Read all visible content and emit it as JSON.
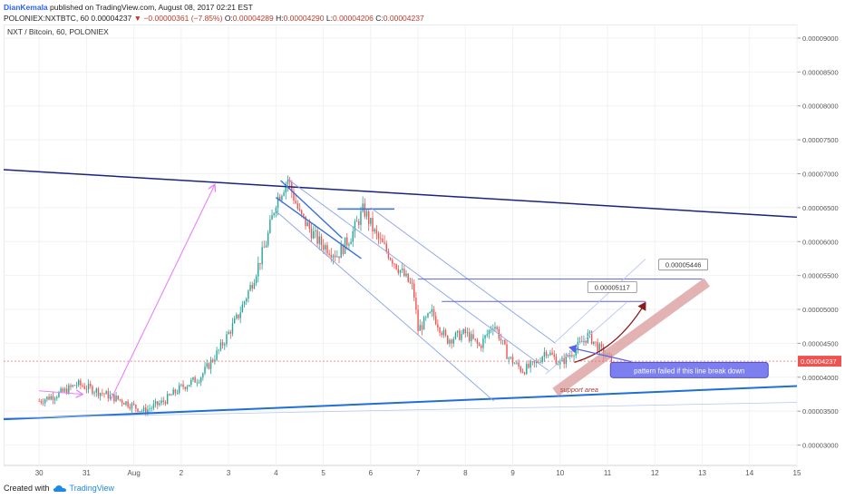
{
  "header": {
    "author": "DianKemala",
    "published": "published on TradingView.com, August 08, 2017 02:21 EST",
    "symbol": "POLONIEX:NXTBTC, 60",
    "change_arrow": "▼",
    "change": "−0.00000361 (−7.85%)",
    "price": "0.00004237",
    "open_label": "O:",
    "open": "0.00004289",
    "high_label": "H:",
    "high": "0.00004290",
    "low_label": "L:",
    "low": "0.00004206",
    "close_label": "C:",
    "close": "0.00004237"
  },
  "footer": {
    "created_with": "Created with",
    "brand": "TradingView"
  },
  "chart_data": {
    "type": "candlestick",
    "title": "NXT / Bitcoin, 60, POLONIEX",
    "x_ticks": [
      "30",
      "31",
      "Aug",
      "2",
      "3",
      "4",
      "5",
      "6",
      "7",
      "8",
      "9",
      "10",
      "11",
      "12",
      "13",
      "14",
      "15"
    ],
    "y_ticks": [
      "0.00009000",
      "0.00008500",
      "0.00008000",
      "0.00007500",
      "0.00007000",
      "0.00006500",
      "0.00006000",
      "0.00005500",
      "0.00005000",
      "0.00004500",
      "0.00004000",
      "0.00003500",
      "0.00003000"
    ],
    "ylim": [
      2.7e-05,
      9.2e-05
    ],
    "x_range_days": [
      -0.75,
      16.0
    ],
    "last_price": "0.00004237",
    "last_price_value": 4.237e-05,
    "colors": {
      "up": "#26a69a",
      "down": "#ef5350",
      "downtrend": "#1a237e",
      "support": "#1e6fd6",
      "annotation": "#5b62e8",
      "arrow_red": "#8b1a1a",
      "arrow_pink": "#ea80fc",
      "band": "#d99a9a"
    },
    "ohlc_path": [
      [
        0.0,
        3.65e-05
      ],
      [
        0.5,
        3.78e-05
      ],
      [
        0.8,
        3.9e-05
      ],
      [
        1.1,
        3.83e-05
      ],
      [
        1.5,
        3.72e-05
      ],
      [
        1.8,
        3.64e-05
      ],
      [
        2.2,
        3.5e-05
      ],
      [
        2.6,
        3.63e-05
      ],
      [
        3.0,
        3.85e-05
      ],
      [
        3.4,
        4e-05
      ],
      [
        3.8,
        4.4e-05
      ],
      [
        4.2,
        4.9e-05
      ],
      [
        4.5,
        5.4e-05
      ],
      [
        4.8,
        6e-05
      ],
      [
        5.0,
        6.6e-05
      ],
      [
        5.25,
        6.92e-05
      ],
      [
        5.5,
        6.4e-05
      ],
      [
        5.9,
        6e-05
      ],
      [
        6.3,
        5.8e-05
      ],
      [
        6.6,
        6.1e-05
      ],
      [
        6.85,
        6.48e-05
      ],
      [
        7.1,
        6.1e-05
      ],
      [
        7.5,
        5.7e-05
      ],
      [
        7.9,
        5.3e-05
      ],
      [
        8.0,
        4.7e-05
      ],
      [
        8.3,
        4.95e-05
      ],
      [
        8.6,
        4.55e-05
      ],
      [
        9.0,
        4.65e-05
      ],
      [
        9.3,
        4.45e-05
      ],
      [
        9.6,
        4.8e-05
      ],
      [
        9.9,
        4.3e-05
      ],
      [
        10.2,
        4.1e-05
      ],
      [
        10.5,
        4.2e-05
      ],
      [
        10.7,
        4.4e-05
      ],
      [
        11.0,
        4.2e-05
      ],
      [
        11.3,
        4.4e-05
      ],
      [
        11.6,
        4.62e-05
      ],
      [
        11.85,
        4.4e-05
      ],
      [
        12.1,
        4.24e-05
      ]
    ],
    "downtrend_line": {
      "from": [
        -0.75,
        7.06e-05
      ],
      "to": [
        16.0,
        6.36e-05
      ]
    },
    "support_line": {
      "from": [
        -0.75,
        3.38e-05
      ],
      "to": [
        16.0,
        3.87e-05
      ]
    },
    "support_line_faint": {
      "from": [
        -0.75,
        3.4e-05
      ],
      "to": [
        16.0,
        3.63e-05
      ]
    },
    "wedge_lines": [
      {
        "from": [
          5.0,
          6.65e-05
        ],
        "to": [
          6.8,
          5.75e-05
        ]
      },
      {
        "from": [
          5.1,
          6.9e-05
        ],
        "to": [
          6.4,
          6.05e-05
        ]
      }
    ],
    "flag_top": {
      "from": [
        6.3,
        6.48e-05
      ],
      "to": [
        7.5,
        6.48e-05
      ]
    },
    "channel": [
      {
        "from": [
          5.25,
          6.92e-05
        ],
        "to": [
          10.75,
          4.1e-05
        ]
      },
      {
        "from": [
          5.0,
          6.45e-05
        ],
        "to": [
          9.6,
          3.65e-05
        ]
      },
      {
        "from": [
          7.0,
          6.5e-05
        ],
        "to": [
          10.9,
          4.5e-05
        ]
      }
    ],
    "target_lines": [
      {
        "from": [
          8.5,
          5.117e-05
        ],
        "to": [
          12.8,
          5.117e-05
        ]
      },
      {
        "from": [
          8.0,
          5.446e-05
        ],
        "to": [
          14.0,
          5.446e-05
        ]
      }
    ],
    "channel_up": [
      {
        "from": [
          10.9,
          4.52e-05
        ],
        "to": [
          12.8,
          5.74e-05
        ]
      },
      {
        "from": [
          10.7,
          4.05e-05
        ],
        "to": [
          12.4,
          5.1e-05
        ]
      }
    ],
    "labels": [
      {
        "text": "0.00005117",
        "x": 12.1,
        "y": 5.33e-05
      },
      {
        "text": "0.00005446",
        "x": 13.6,
        "y": 5.66e-05
      }
    ],
    "support_band": {
      "from": [
        10.9,
        3.78e-05
      ],
      "to": [
        14.1,
        5.4e-05
      ]
    },
    "support_text": {
      "text": "support area",
      "x": 11.0,
      "y": 3.78e-05
    },
    "callout": {
      "text": "pattern failed if this line break down",
      "x": 12.1,
      "y": 4.1e-05
    },
    "callout_target": [
      11.2,
      4.44e-05
    ],
    "callout_anchor": [
      12.5,
      4.23e-05
    ],
    "red_arrow": [
      [
        11.3,
        4.22e-05
      ],
      [
        12.2,
        4.4e-05
      ],
      [
        12.8,
        5.1e-05
      ]
    ],
    "pink_arrow": {
      "from": [
        1.5,
        3.65e-05
      ],
      "to": [
        3.7,
        6.83e-05
      ]
    },
    "pink_arrow_small": {
      "from": [
        0.0,
        3.8e-05
      ],
      "to": [
        0.9,
        3.75e-05
      ]
    }
  }
}
